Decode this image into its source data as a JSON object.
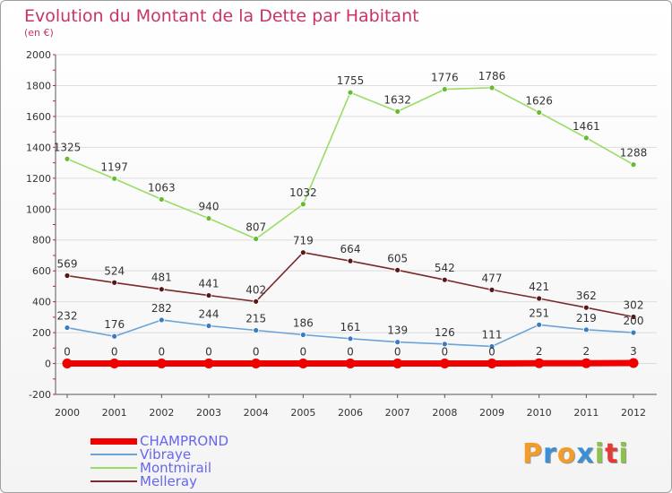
{
  "header": {
    "title": "Evolution du Montant de la Dette par Habitant",
    "subtitle": "(en €)"
  },
  "brand": {
    "text": "Proxiti",
    "colors": [
      "#f39c2a",
      "#3b8fd6",
      "#f39c2a",
      "#3b8fd6",
      "#8bc34a",
      "#e53935",
      "#8bc34a"
    ]
  },
  "chart_data": {
    "type": "line",
    "x": [
      "2000",
      "2001",
      "2002",
      "2003",
      "2004",
      "2005",
      "2006",
      "2007",
      "2008",
      "2009",
      "2010",
      "2011",
      "2012"
    ],
    "ylim": [
      -200,
      2000
    ],
    "yticks": [
      -200,
      0,
      200,
      400,
      600,
      800,
      1000,
      1200,
      1400,
      1600,
      1800,
      2000
    ],
    "series": [
      {
        "name": "Montmirail",
        "color": "#99dd66",
        "marker": "#66bb33",
        "values": [
          1325,
          1197,
          1063,
          940,
          807,
          1032,
          1755,
          1632,
          1776,
          1786,
          1626,
          1461,
          1288
        ]
      },
      {
        "name": "Melleray",
        "color": "#7a2a2a",
        "marker": "#5a1515",
        "values": [
          569,
          524,
          481,
          441,
          402,
          719,
          664,
          605,
          542,
          477,
          421,
          362,
          302
        ]
      },
      {
        "name": "Vibraye",
        "color": "#6ba3d6",
        "marker": "#3a7cc0",
        "values": [
          232,
          176,
          282,
          244,
          215,
          186,
          161,
          139,
          126,
          111,
          251,
          219,
          200
        ]
      },
      {
        "name": "CHAMPROND",
        "color": "#ee0000",
        "marker": "#ee0000",
        "values": [
          0,
          0,
          0,
          0,
          0,
          0,
          0,
          0,
          0,
          0,
          2,
          2,
          3
        ]
      }
    ],
    "legend": [
      {
        "name": "CHAMPROND",
        "color": "#ee0000",
        "label_color": "#6666ee",
        "thickness": 7
      },
      {
        "name": "Vibraye",
        "color": "#6ba3d6",
        "label_color": "#6666ee",
        "thickness": 2
      },
      {
        "name": "Montmirail",
        "color": "#99dd66",
        "label_color": "#6666ee",
        "thickness": 2
      },
      {
        "name": "Melleray",
        "color": "#7a2a2a",
        "label_color": "#6666ee",
        "thickness": 2
      }
    ]
  }
}
